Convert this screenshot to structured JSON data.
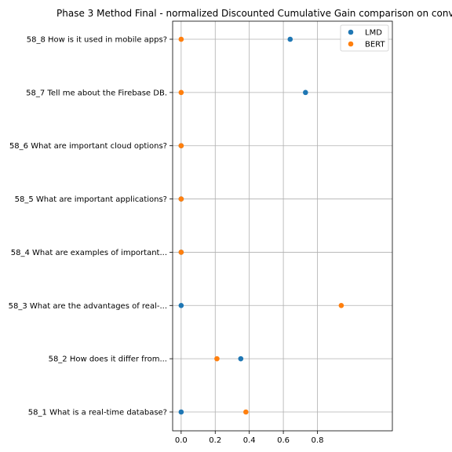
{
  "chart_data": {
    "type": "scatter",
    "title": "Phase 3 Method Final - normalized Discounted Cumulative Gain comparison on conv",
    "xlabel": "",
    "ylabel": "",
    "xlim": [
      -0.05,
      1.24
    ],
    "xticks": [
      "0.0",
      "0.2",
      "0.4",
      "0.6",
      "0.8"
    ],
    "xtick_values": [
      0.0,
      0.2,
      0.4,
      0.6,
      0.8
    ],
    "categories": [
      "58_1 What is a real-time database?",
      "58_2 How does it differ from...",
      "58_3 What are the advantages of real-...",
      "58_4 What are examples of important...",
      "58_5 What are important applications?",
      "58_6 What are important cloud options?",
      "58_7 Tell me about the Firebase DB.",
      "58_8 How is it used in mobile apps?"
    ],
    "series": [
      {
        "name": "LMD",
        "color": "#1f77b4",
        "values": [
          0.0,
          0.35,
          0.0,
          0.0,
          0.0,
          0.0,
          0.73,
          0.64
        ]
      },
      {
        "name": "BERT",
        "color": "#ff7f0e",
        "values": [
          0.38,
          0.21,
          0.94,
          0.0,
          0.0,
          0.0,
          0.0,
          0.0
        ]
      }
    ],
    "grid": true,
    "legend_position": "top-right"
  }
}
